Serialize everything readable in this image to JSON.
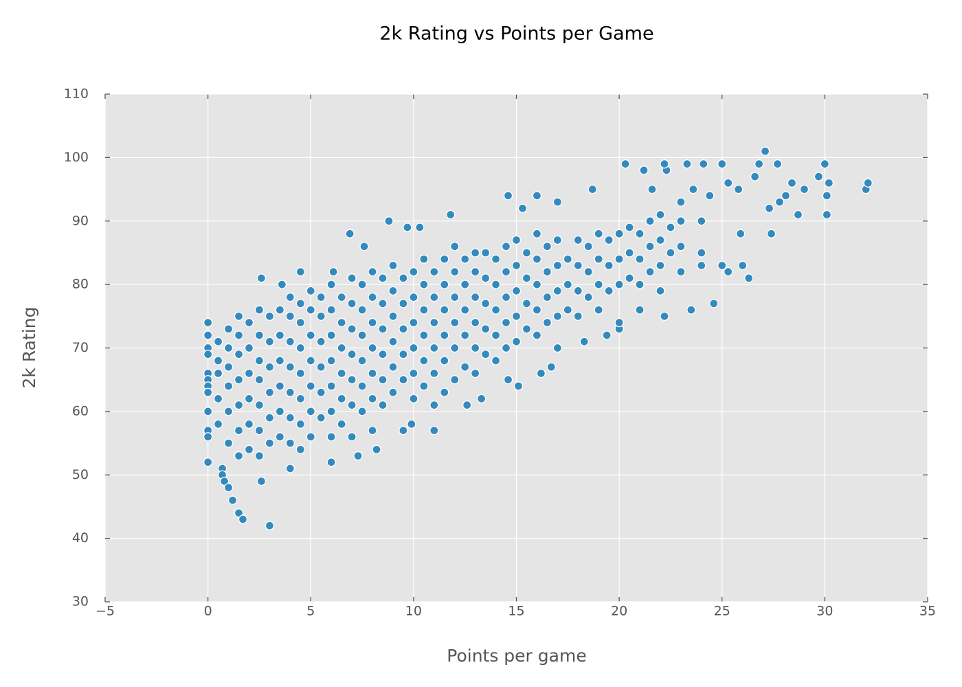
{
  "chart_data": {
    "type": "scatter",
    "title": "2k Rating vs Points per Game",
    "xlabel": "Points per game",
    "ylabel": "2k Rating",
    "color": "#348abd",
    "grid": true,
    "xlim": [
      -5,
      35
    ],
    "ylim": [
      30,
      110
    ],
    "xticks": [
      {
        "value": -5,
        "label": "−5"
      },
      0,
      5,
      10,
      15,
      20,
      25,
      30,
      35
    ],
    "yticks": [
      30,
      40,
      50,
      60,
      70,
      80,
      90,
      100,
      110
    ],
    "x": [
      0,
      0,
      0,
      0,
      0,
      0,
      0,
      0,
      0,
      0,
      0,
      0,
      0.7,
      0.7,
      0.8,
      1.0,
      1.2,
      1.5,
      1.7,
      3.0,
      2.6,
      2.6,
      3.6,
      6.0,
      7.3,
      8.2,
      9.9,
      11.0,
      13.3,
      12.6,
      14.6,
      15.1,
      16.7,
      16.2,
      18.3,
      19.4,
      20.0,
      22.2,
      23.5,
      24.6,
      26.3,
      25.3,
      25.0,
      26.0,
      27.4,
      25.9,
      28.7,
      30.1,
      30.1,
      30.2,
      32.0,
      32.1,
      30.0,
      29.7,
      29.0,
      28.4,
      27.7,
      27.1,
      26.8,
      26.6,
      25.8,
      25.3,
      25.0,
      24.1,
      23.3,
      22.3,
      22.2,
      21.2,
      20.3,
      18.7,
      16.0,
      14.6,
      15.3,
      17.0,
      8.8,
      9.7,
      10.3,
      11.8,
      6.9,
      7.6,
      4.5,
      6.1,
      24.4,
      23.6,
      21.6,
      27.8,
      27.3,
      28.1,
      0.5,
      0.5,
      0.5,
      0.5,
      0.5,
      1.0,
      1.0,
      1.0,
      1.0,
      1.0,
      1.0,
      1.5,
      1.5,
      1.5,
      1.5,
      1.5,
      1.5,
      1.5,
      2.0,
      2.0,
      2.0,
      2.0,
      2.0,
      2.0,
      2.5,
      2.5,
      2.5,
      2.5,
      2.5,
      2.5,
      2.5,
      3.0,
      3.0,
      3.0,
      3.0,
      3.0,
      3.0,
      3.5,
      3.5,
      3.5,
      3.5,
      3.5,
      3.5,
      4.0,
      4.0,
      4.0,
      4.0,
      4.0,
      4.0,
      4.0,
      4.0,
      4.5,
      4.5,
      4.5,
      4.5,
      4.5,
      4.5,
      4.5,
      5.0,
      5.0,
      5.0,
      5.0,
      5.0,
      5.0,
      5.0,
      5.5,
      5.5,
      5.5,
      5.5,
      5.5,
      5.5,
      6.0,
      6.0,
      6.0,
      6.0,
      6.0,
      6.0,
      6.0,
      6.5,
      6.5,
      6.5,
      6.5,
      6.5,
      6.5,
      7.0,
      7.0,
      7.0,
      7.0,
      7.0,
      7.0,
      7.0,
      7.5,
      7.5,
      7.5,
      7.5,
      7.5,
      7.5,
      8.0,
      8.0,
      8.0,
      8.0,
      8.0,
      8.0,
      8.0,
      8.5,
      8.5,
      8.5,
      8.5,
      8.5,
      8.5,
      9.0,
      9.0,
      9.0,
      9.0,
      9.0,
      9.0,
      9.5,
      9.5,
      9.5,
      9.5,
      9.5,
      9.5,
      10.0,
      10.0,
      10.0,
      10.0,
      10.0,
      10.0,
      10.5,
      10.5,
      10.5,
      10.5,
      10.5,
      10.5,
      11.0,
      11.0,
      11.0,
      11.0,
      11.0,
      11.0,
      11.5,
      11.5,
      11.5,
      11.5,
      11.5,
      11.5,
      12.0,
      12.0,
      12.0,
      12.0,
      12.0,
      12.0,
      12.5,
      12.5,
      12.5,
      12.5,
      12.5,
      13.0,
      13.0,
      13.0,
      13.0,
      13.0,
      13.0,
      13.5,
      13.5,
      13.5,
      13.5,
      13.5,
      14.0,
      14.0,
      14.0,
      14.0,
      14.0,
      14.5,
      14.5,
      14.5,
      14.5,
      14.5,
      15.0,
      15.0,
      15.0,
      15.0,
      15.0,
      15.5,
      15.5,
      15.5,
      15.5,
      16.0,
      16.0,
      16.0,
      16.0,
      16.0,
      16.5,
      16.5,
      16.5,
      16.5,
      17.0,
      17.0,
      17.0,
      17.0,
      17.0,
      17.5,
      17.5,
      17.5,
      18.0,
      18.0,
      18.0,
      18.0,
      18.5,
      18.5,
      18.5,
      19.0,
      19.0,
      19.0,
      19.0,
      19.5,
      19.5,
      19.5,
      20.0,
      20.0,
      20.0,
      20.0,
      20.5,
      20.5,
      20.5,
      21.0,
      21.0,
      21.0,
      21.0,
      21.5,
      21.5,
      21.5,
      22.0,
      22.0,
      22.0,
      22.0,
      22.5,
      22.5,
      23.0,
      23.0,
      23.0,
      23.0,
      24.0,
      24.0,
      24.0
    ],
    "y": [
      52,
      74,
      72,
      70,
      69,
      66,
      65,
      64,
      63,
      60,
      57,
      56,
      51,
      50,
      49,
      48,
      46,
      44,
      43,
      42,
      49,
      81,
      80,
      52,
      53,
      54,
      58,
      57,
      62,
      61,
      65,
      64,
      67,
      66,
      71,
      72,
      73,
      75,
      76,
      77,
      81,
      82,
      83,
      83,
      88,
      88,
      91,
      91,
      94,
      96,
      95,
      96,
      99,
      97,
      95,
      96,
      99,
      101,
      99,
      97,
      95,
      96,
      99,
      99,
      99,
      98,
      99,
      98,
      99,
      95,
      94,
      94,
      92,
      93,
      90,
      89,
      89,
      91,
      88,
      86,
      82,
      82,
      94,
      95,
      95,
      93,
      92,
      94,
      58,
      62,
      66,
      68,
      71,
      55,
      60,
      64,
      67,
      70,
      73,
      53,
      57,
      61,
      65,
      69,
      72,
      75,
      54,
      58,
      62,
      66,
      70,
      74,
      53,
      57,
      61,
      65,
      68,
      72,
      76,
      55,
      59,
      63,
      67,
      71,
      75,
      56,
      60,
      64,
      68,
      72,
      76,
      51,
      55,
      59,
      63,
      67,
      71,
      75,
      78,
      54,
      58,
      62,
      66,
      70,
      74,
      77,
      56,
      60,
      64,
      68,
      72,
      76,
      79,
      59,
      63,
      67,
      71,
      75,
      78,
      56,
      60,
      64,
      68,
      72,
      76,
      80,
      58,
      62,
      66,
      70,
      74,
      78,
      56,
      61,
      65,
      69,
      73,
      77,
      81,
      60,
      64,
      68,
      72,
      76,
      80,
      57,
      62,
      66,
      70,
      74,
      78,
      82,
      61,
      65,
      69,
      73,
      77,
      81,
      63,
      67,
      71,
      75,
      79,
      83,
      57,
      65,
      69,
      73,
      77,
      81,
      62,
      66,
      70,
      74,
      78,
      82,
      64,
      68,
      72,
      76,
      80,
      84,
      61,
      66,
      70,
      74,
      78,
      82,
      63,
      68,
      72,
      76,
      80,
      84,
      65,
      70,
      74,
      78,
      82,
      86,
      67,
      72,
      76,
      80,
      84,
      66,
      70,
      74,
      78,
      82,
      85,
      69,
      73,
      77,
      81,
      85,
      68,
      72,
      76,
      80,
      84,
      70,
      74,
      78,
      82,
      86,
      71,
      75,
      79,
      83,
      87,
      73,
      77,
      81,
      85,
      72,
      76,
      80,
      84,
      88,
      74,
      78,
      82,
      86,
      70,
      75,
      79,
      83,
      87,
      76,
      80,
      84,
      75,
      79,
      83,
      87,
      78,
      82,
      86,
      76,
      80,
      84,
      88,
      79,
      83,
      87,
      74,
      80,
      84,
      88,
      81,
      85,
      89,
      76,
      80,
      84,
      88,
      82,
      86,
      90,
      79,
      83,
      87,
      91,
      85,
      89,
      82,
      86,
      90,
      93,
      83,
      85,
      90
    ]
  }
}
